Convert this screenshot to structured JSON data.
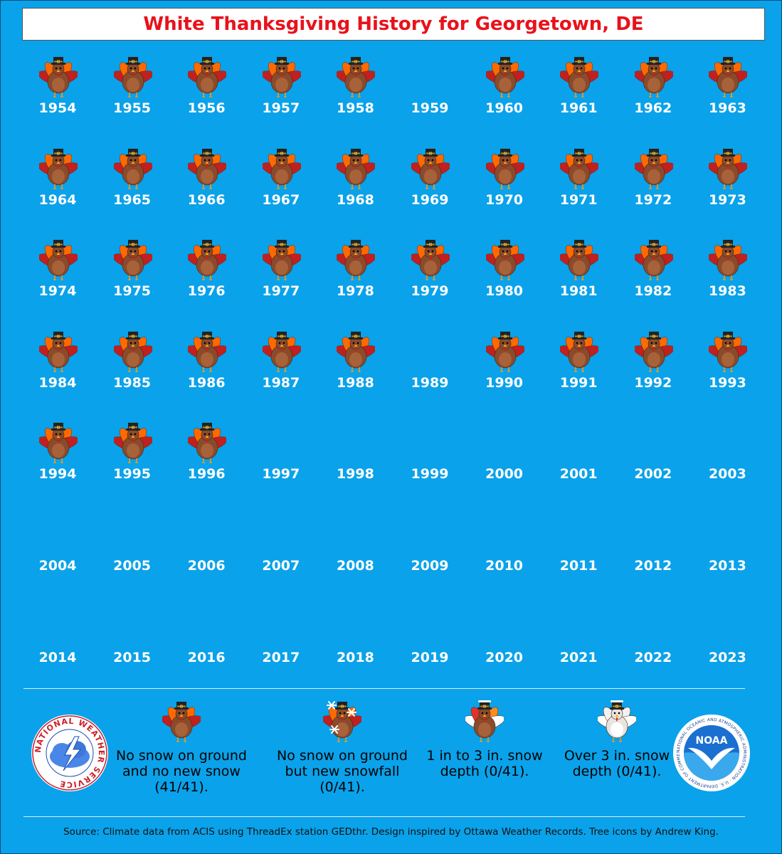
{
  "title": "White Thanksgiving History for Georgetown, DE",
  "years": [
    {
      "year": "1954",
      "turkey": true
    },
    {
      "year": "1955",
      "turkey": true
    },
    {
      "year": "1956",
      "turkey": true
    },
    {
      "year": "1957",
      "turkey": true
    },
    {
      "year": "1958",
      "turkey": true
    },
    {
      "year": "1959",
      "turkey": false
    },
    {
      "year": "1960",
      "turkey": true
    },
    {
      "year": "1961",
      "turkey": true
    },
    {
      "year": "1962",
      "turkey": true
    },
    {
      "year": "1963",
      "turkey": true
    },
    {
      "year": "1964",
      "turkey": true
    },
    {
      "year": "1965",
      "turkey": true
    },
    {
      "year": "1966",
      "turkey": true
    },
    {
      "year": "1967",
      "turkey": true
    },
    {
      "year": "1968",
      "turkey": true
    },
    {
      "year": "1969",
      "turkey": true
    },
    {
      "year": "1970",
      "turkey": true
    },
    {
      "year": "1971",
      "turkey": true
    },
    {
      "year": "1972",
      "turkey": true
    },
    {
      "year": "1973",
      "turkey": true
    },
    {
      "year": "1974",
      "turkey": true
    },
    {
      "year": "1975",
      "turkey": true
    },
    {
      "year": "1976",
      "turkey": true
    },
    {
      "year": "1977",
      "turkey": true
    },
    {
      "year": "1978",
      "turkey": true
    },
    {
      "year": "1979",
      "turkey": true
    },
    {
      "year": "1980",
      "turkey": true
    },
    {
      "year": "1981",
      "turkey": true
    },
    {
      "year": "1982",
      "turkey": true
    },
    {
      "year": "1983",
      "turkey": true
    },
    {
      "year": "1984",
      "turkey": true
    },
    {
      "year": "1985",
      "turkey": true
    },
    {
      "year": "1986",
      "turkey": true
    },
    {
      "year": "1987",
      "turkey": true
    },
    {
      "year": "1988",
      "turkey": true
    },
    {
      "year": "1989",
      "turkey": false
    },
    {
      "year": "1990",
      "turkey": true
    },
    {
      "year": "1991",
      "turkey": true
    },
    {
      "year": "1992",
      "turkey": true
    },
    {
      "year": "1993",
      "turkey": true
    },
    {
      "year": "1994",
      "turkey": true
    },
    {
      "year": "1995",
      "turkey": true
    },
    {
      "year": "1996",
      "turkey": true
    },
    {
      "year": "1997",
      "turkey": false
    },
    {
      "year": "1998",
      "turkey": false
    },
    {
      "year": "1999",
      "turkey": false
    },
    {
      "year": "2000",
      "turkey": false
    },
    {
      "year": "2001",
      "turkey": false
    },
    {
      "year": "2002",
      "turkey": false
    },
    {
      "year": "2003",
      "turkey": false
    },
    {
      "year": "2004",
      "turkey": false
    },
    {
      "year": "2005",
      "turkey": false
    },
    {
      "year": "2006",
      "turkey": false
    },
    {
      "year": "2007",
      "turkey": false
    },
    {
      "year": "2008",
      "turkey": false
    },
    {
      "year": "2009",
      "turkey": false
    },
    {
      "year": "2010",
      "turkey": false
    },
    {
      "year": "2011",
      "turkey": false
    },
    {
      "year": "2012",
      "turkey": false
    },
    {
      "year": "2013",
      "turkey": false
    },
    {
      "year": "2014",
      "turkey": false
    },
    {
      "year": "2015",
      "turkey": false
    },
    {
      "year": "2016",
      "turkey": false
    },
    {
      "year": "2017",
      "turkey": false
    },
    {
      "year": "2018",
      "turkey": false
    },
    {
      "year": "2019",
      "turkey": false
    },
    {
      "year": "2020",
      "turkey": false
    },
    {
      "year": "2021",
      "turkey": false
    },
    {
      "year": "2022",
      "turkey": false
    },
    {
      "year": "2023",
      "turkey": false
    }
  ],
  "legend": [
    {
      "icon": "turkey-icon",
      "text": "No snow on ground and no new snow (41/41)."
    },
    {
      "icon": "turkey-snowflakes-icon",
      "text": "No snow on ground but new snowfall (0/41)."
    },
    {
      "icon": "turkey-snowy-icon",
      "text": "1 in to 3 in. snow depth (0/41)."
    },
    {
      "icon": "turkey-snow-covered-icon",
      "text": "Over 3 in. snow depth (0/41)."
    }
  ],
  "logos": {
    "nws_text": "NATIONAL WEATHER SERVICE",
    "noaa_text": "NOAA",
    "noaa_ring_text": "NATIONAL OCEANIC AND ATMOSPHERIC ADMINISTRATION · U.S. DEPARTMENT OF COMMERCE"
  },
  "source": "Source: Climate data from ACIS using ThreadEx station GEDthr. Design inspired by Ottawa Weather Records. Tree icons by Andrew King.",
  "colors": {
    "background": "#0aa2ea",
    "title": "#e8121b",
    "year": "#ffffff"
  }
}
